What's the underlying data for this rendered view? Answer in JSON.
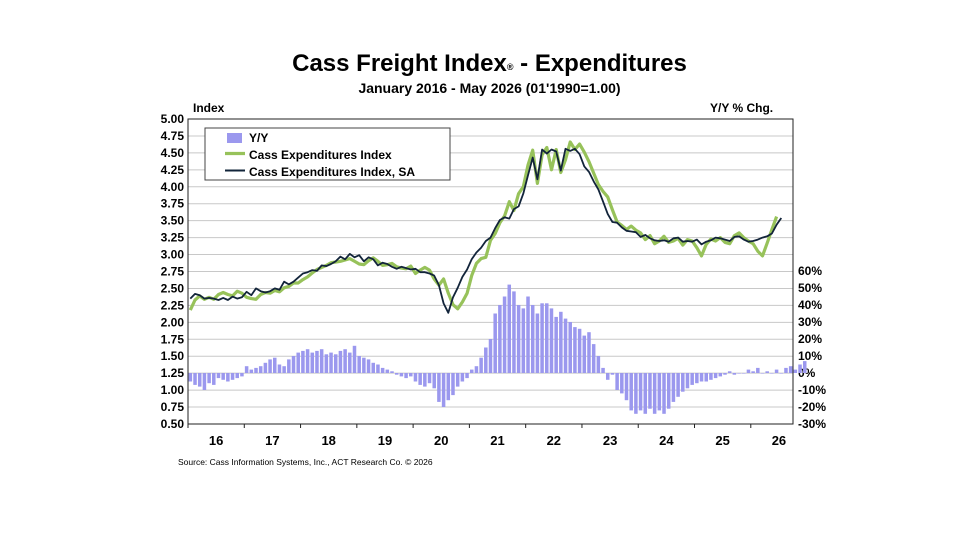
{
  "chart_data": {
    "type": "line",
    "title": "Cass Freight Index",
    "title_mark": "®",
    "title_suffix": " - Expenditures",
    "subtitle": "January 2016 - May 2026 (01'1990=1.00)",
    "ylabel_left": "Index",
    "ylabel_right": "Y/Y % Chg.",
    "source": "Source: Cass Information Systems, Inc., ACT Research Co. © 2026",
    "x_start": "2016-01",
    "x_end": "2026-05",
    "x_tick_labels": [
      "16",
      "17",
      "18",
      "19",
      "20",
      "21",
      "22",
      "23",
      "24",
      "25",
      "26"
    ],
    "ylim_left": [
      0.5,
      5.0
    ],
    "yticks_left": [
      "0.50",
      "0.75",
      "1.00",
      "1.25",
      "1.50",
      "1.75",
      "2.00",
      "2.25",
      "2.50",
      "2.75",
      "3.00",
      "3.25",
      "3.50",
      "3.75",
      "4.00",
      "4.25",
      "4.50",
      "4.75",
      "5.00"
    ],
    "ylim_right": [
      -30,
      60
    ],
    "yticks_right": [
      "-30%",
      "-20%",
      "-10%",
      "0%",
      "10%",
      "20%",
      "30%",
      "40%",
      "50%",
      "60%"
    ],
    "legend_position": "top-left",
    "grid": true,
    "colors": {
      "yy": "#9b98ee",
      "cass": "#97c25a",
      "sa": "#12243a"
    },
    "series": [
      {
        "name": "Y/Y",
        "type": "bar",
        "axis": "right",
        "values": [
          -5,
          -7,
          -8,
          -10,
          -6,
          -7,
          -3,
          -4,
          -5,
          -4,
          -3,
          -2,
          4,
          2,
          3,
          4,
          6,
          8,
          9,
          5,
          4,
          8,
          10,
          12,
          13,
          14,
          12,
          13,
          14,
          11,
          12,
          11,
          13,
          14,
          12,
          16,
          10,
          9,
          8,
          6,
          5,
          3,
          2,
          1,
          -1,
          -2,
          -3,
          -2,
          -5,
          -7,
          -8,
          -6,
          -9,
          -17,
          -20,
          -16,
          -13,
          -8,
          -5,
          -3,
          2,
          4,
          9,
          15,
          20,
          35,
          40,
          45,
          52,
          48,
          40,
          38,
          45,
          40,
          35,
          41,
          41,
          38,
          33,
          36,
          32,
          30,
          27,
          26,
          22,
          24,
          17,
          10,
          3,
          -4,
          -1,
          -10,
          -12,
          -16,
          -22,
          -24,
          -22,
          -24,
          -21,
          -24,
          -22,
          -24,
          -21,
          -17,
          -14,
          -11,
          -9,
          -7,
          -6,
          -5,
          -5,
          -4,
          -3,
          -2,
          -1,
          1,
          -1,
          0,
          0,
          2,
          1,
          3,
          0,
          1,
          0,
          2,
          0,
          3,
          4,
          2,
          5,
          7
        ]
      },
      {
        "name": "Cass Expenditures Index",
        "type": "line",
        "axis": "left",
        "values": [
          2.18,
          2.33,
          2.39,
          2.34,
          2.37,
          2.34,
          2.41,
          2.44,
          2.41,
          2.39,
          2.46,
          2.43,
          2.37,
          2.35,
          2.34,
          2.41,
          2.44,
          2.43,
          2.47,
          2.45,
          2.51,
          2.53,
          2.58,
          2.58,
          2.63,
          2.67,
          2.73,
          2.78,
          2.81,
          2.84,
          2.88,
          2.89,
          2.9,
          2.92,
          2.94,
          2.9,
          2.86,
          2.85,
          2.91,
          2.95,
          2.9,
          2.84,
          2.85,
          2.87,
          2.82,
          2.8,
          2.79,
          2.83,
          2.72,
          2.77,
          2.81,
          2.77,
          2.64,
          2.55,
          2.64,
          2.43,
          2.26,
          2.2,
          2.3,
          2.43,
          2.69,
          2.87,
          2.94,
          2.96,
          3.21,
          3.31,
          3.47,
          3.57,
          3.78,
          3.65,
          3.9,
          4.0,
          4.32,
          4.54,
          4.05,
          4.47,
          4.58,
          4.25,
          4.55,
          4.21,
          4.4,
          4.66,
          4.55,
          4.63,
          4.51,
          4.37,
          4.2,
          4.03,
          3.93,
          3.85,
          3.66,
          3.48,
          3.43,
          3.37,
          3.42,
          3.36,
          3.32,
          3.22,
          3.28,
          3.16,
          3.2,
          3.27,
          3.18,
          3.2,
          3.24,
          3.14,
          3.22,
          3.2,
          3.1,
          2.98,
          3.15,
          3.23,
          3.2,
          3.25,
          3.18,
          3.16,
          3.28,
          3.32,
          3.25,
          3.2,
          3.16,
          3.05,
          2.98,
          3.17,
          3.37,
          3.56
        ]
      },
      {
        "name": "Cass Expenditures Index, SA",
        "type": "line",
        "axis": "left",
        "values": [
          2.35,
          2.42,
          2.4,
          2.35,
          2.36,
          2.35,
          2.33,
          2.36,
          2.33,
          2.38,
          2.35,
          2.37,
          2.45,
          2.4,
          2.5,
          2.46,
          2.44,
          2.46,
          2.5,
          2.48,
          2.6,
          2.56,
          2.6,
          2.66,
          2.72,
          2.74,
          2.77,
          2.76,
          2.84,
          2.83,
          2.86,
          2.9,
          2.97,
          2.93,
          3.01,
          2.96,
          2.99,
          2.9,
          2.96,
          2.93,
          2.84,
          2.88,
          2.86,
          2.82,
          2.79,
          2.82,
          2.8,
          2.78,
          2.79,
          2.74,
          2.74,
          2.72,
          2.69,
          2.55,
          2.28,
          2.14,
          2.37,
          2.51,
          2.67,
          2.78,
          2.93,
          3.03,
          3.1,
          3.2,
          3.25,
          3.39,
          3.51,
          3.55,
          3.53,
          3.67,
          3.71,
          3.9,
          4.17,
          4.43,
          4.11,
          4.55,
          4.49,
          4.55,
          4.52,
          4.24,
          4.56,
          4.53,
          4.56,
          4.48,
          4.3,
          4.22,
          4.08,
          3.96,
          3.78,
          3.6,
          3.48,
          3.47,
          3.4,
          3.35,
          3.34,
          3.33,
          3.26,
          3.29,
          3.24,
          3.21,
          3.2,
          3.21,
          3.19,
          3.24,
          3.25,
          3.19,
          3.2,
          3.19,
          3.22,
          3.15,
          3.19,
          3.21,
          3.25,
          3.24,
          3.22,
          3.2,
          3.26,
          3.27,
          3.22,
          3.19,
          3.2,
          3.22,
          3.25,
          3.27,
          3.31,
          3.44,
          3.54
        ]
      }
    ]
  }
}
